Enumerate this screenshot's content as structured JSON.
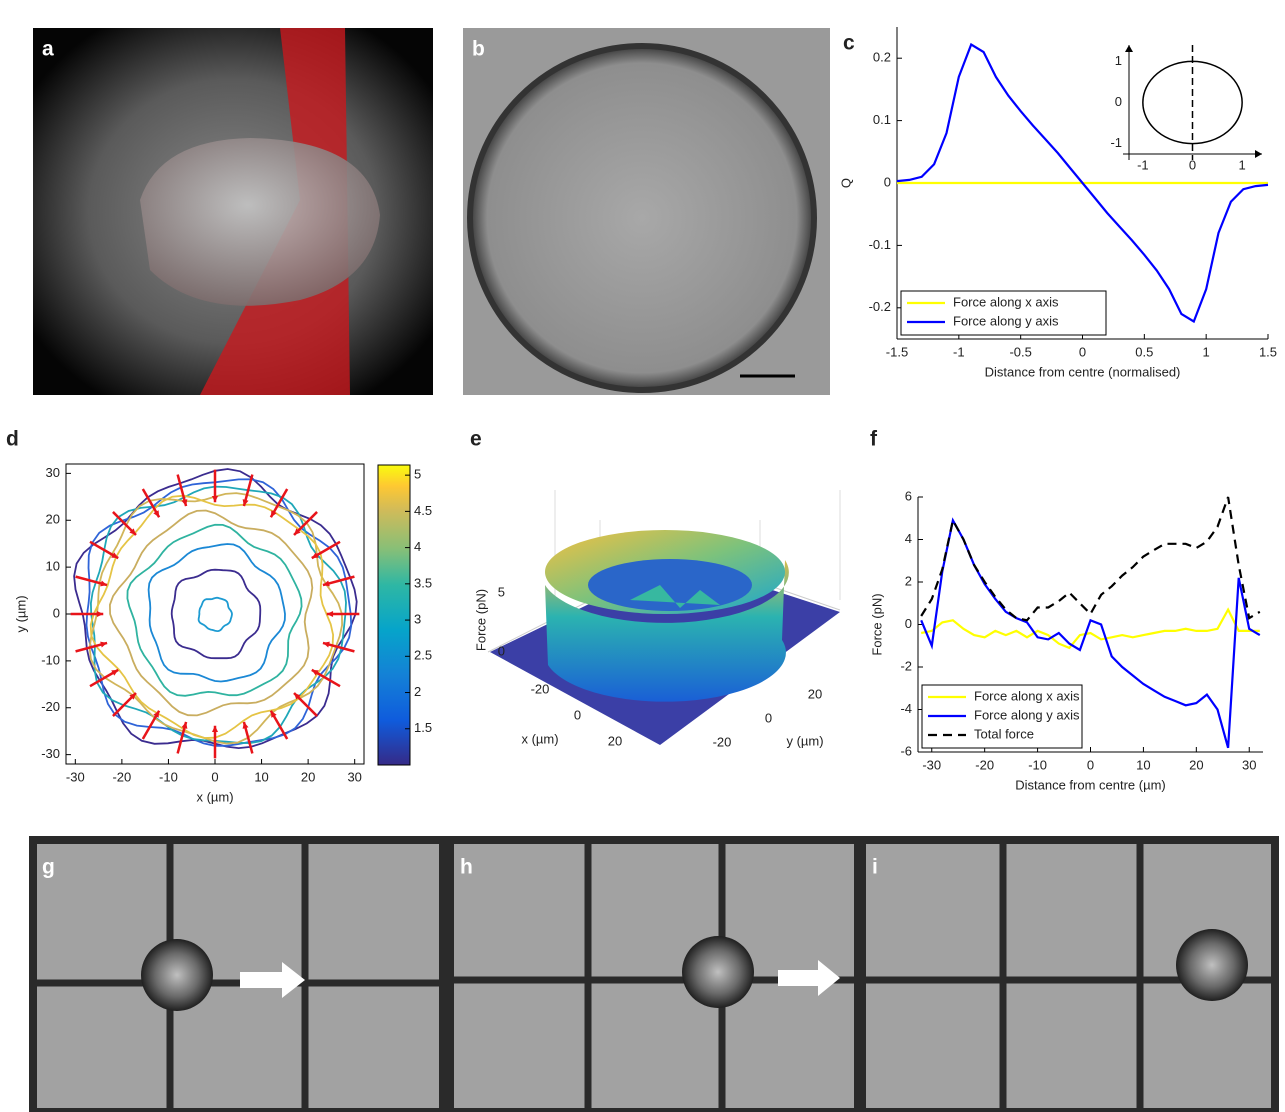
{
  "panel_labels": [
    "a",
    "b",
    "c",
    "d",
    "e",
    "f",
    "g",
    "h",
    "i"
  ],
  "chart_data": [
    {
      "type": "line",
      "xlabel": "Distance from centre (normalised)",
      "ylabel": "Q",
      "x": [
        -1.5,
        -1.4,
        -1.3,
        -1.2,
        -1.1,
        -1.0,
        -0.9,
        -0.8,
        -0.7,
        -0.6,
        -0.5,
        -0.4,
        -0.3,
        -0.2,
        -0.1,
        0,
        0.1,
        0.2,
        0.3,
        0.4,
        0.5,
        0.6,
        0.7,
        0.8,
        0.9,
        1.0,
        1.1,
        1.2,
        1.3,
        1.4,
        1.5
      ],
      "series": [
        {
          "name": "Force along x axis",
          "color": "#ffff00",
          "values": [
            0,
            0,
            0,
            0,
            0,
            0,
            0,
            0,
            0,
            0,
            0,
            0,
            0,
            0,
            0,
            0,
            0,
            0,
            0,
            0,
            0,
            0,
            0,
            0,
            0,
            0,
            0,
            0,
            0,
            0,
            0
          ]
        },
        {
          "name": "Force along y axis",
          "color": "#0000ff",
          "values": [
            0.003,
            0.005,
            0.01,
            0.03,
            0.08,
            0.17,
            0.222,
            0.21,
            0.17,
            0.14,
            0.115,
            0.092,
            0.07,
            0.048,
            0.024,
            0,
            -0.024,
            -0.048,
            -0.07,
            -0.092,
            -0.115,
            -0.14,
            -0.17,
            -0.21,
            -0.222,
            -0.17,
            -0.08,
            -0.03,
            -0.01,
            -0.005,
            -0.003
          ]
        }
      ],
      "xlim": [
        -1.5,
        1.5
      ],
      "ylim": [
        -0.25,
        0.25
      ],
      "xticks": [
        -1.5,
        -1,
        -0.5,
        0,
        0.5,
        1,
        1.5
      ],
      "yticks": [
        -0.2,
        -0.1,
        0,
        0.1,
        0.2
      ],
      "legend": "lower left",
      "inset": {
        "xlim": [
          -1.4,
          1.4
        ],
        "ylim": [
          -1.4,
          1.4
        ],
        "xticks": [
          -1,
          0,
          1
        ],
        "yticks": [
          -1,
          0,
          1
        ]
      }
    },
    {
      "type": "contour",
      "xlabel": "x (µm)",
      "ylabel": "y (µm)",
      "xlim": [
        -32,
        32
      ],
      "ylim": [
        -32,
        32
      ],
      "xticks": [
        -30,
        -20,
        -10,
        0,
        10,
        20,
        30
      ],
      "yticks": [
        -30,
        -20,
        -10,
        0,
        10,
        20,
        30
      ],
      "colorbar": {
        "lim": [
          1.0,
          5.14
        ],
        "ticks": [
          1.5,
          2,
          2.5,
          3,
          3.5,
          4,
          4.5,
          5
        ]
      }
    },
    {
      "type": "surface",
      "zlabel": "Force (pN)",
      "xlabel": "x (µm)",
      "ylabel": "y (µm)",
      "xticks": [
        -20,
        0,
        20
      ],
      "yticks": [
        20,
        0,
        -20
      ],
      "zticks": [
        0,
        5
      ]
    },
    {
      "type": "line",
      "xlabel": "Distance from centre (µm)",
      "ylabel": "Force (pN)",
      "x": [
        -32,
        -30,
        -28,
        -26,
        -24,
        -22,
        -20,
        -18,
        -16,
        -14,
        -12,
        -10,
        -8,
        -6,
        -4,
        -2,
        0,
        2,
        4,
        6,
        8,
        10,
        12,
        14,
        16,
        18,
        20,
        22,
        24,
        26,
        28,
        30,
        32
      ],
      "series": [
        {
          "name": "Force along x axis",
          "color": "#ffff00",
          "values": [
            -0.4,
            -0.3,
            0.1,
            0.2,
            -0.2,
            -0.5,
            -0.6,
            -0.3,
            -0.5,
            -0.3,
            -0.6,
            -0.3,
            -0.5,
            -0.9,
            -1.1,
            -0.5,
            -0.4,
            -0.7,
            -0.6,
            -0.5,
            -0.6,
            -0.5,
            -0.4,
            -0.3,
            -0.3,
            -0.2,
            -0.3,
            -0.3,
            -0.2,
            0.7,
            -0.3,
            -0.3,
            -0.3
          ]
        },
        {
          "name": "Force along y axis",
          "color": "#0000ff",
          "values": [
            0.2,
            -1.0,
            2.5,
            4.9,
            4.0,
            2.8,
            1.9,
            1.2,
            0.6,
            0.3,
            0.1,
            -0.6,
            -0.7,
            -0.4,
            -0.9,
            -1.2,
            0.2,
            0.0,
            -1.5,
            -2.0,
            -2.4,
            -2.8,
            -3.1,
            -3.4,
            -3.6,
            -3.8,
            -3.7,
            -3.3,
            -4.0,
            -5.8,
            2.2,
            -0.2,
            -0.5
          ]
        },
        {
          "name": "Total force",
          "color": "#000000",
          "linestyle": "dashed",
          "values": [
            0.4,
            1.2,
            2.6,
            4.9,
            4.0,
            2.8,
            2.0,
            1.3,
            0.7,
            0.3,
            0.2,
            0.8,
            0.8,
            1.1,
            1.5,
            1.0,
            0.5,
            1.4,
            1.8,
            2.3,
            2.7,
            3.2,
            3.5,
            3.8,
            3.8,
            3.8,
            3.6,
            3.9,
            4.6,
            6.0,
            2.8,
            0.3,
            0.6
          ]
        }
      ],
      "xlim": [
        -32.6,
        32.6
      ],
      "ylim": [
        -6,
        6
      ],
      "xticks": [
        -30,
        -20,
        -10,
        0,
        10,
        20,
        30
      ],
      "yticks": [
        -6,
        -4,
        -2,
        0,
        2,
        4,
        6
      ],
      "legend": "lower left"
    }
  ]
}
